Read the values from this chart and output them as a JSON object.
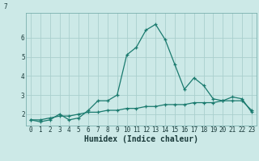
{
  "title": "",
  "xlabel": "Humidex (Indice chaleur)",
  "background_color": "#cce9e7",
  "grid_color": "#aacfcd",
  "line_color": "#1a7a6e",
  "spine_color": "#7ab0ae",
  "xlim": [
    -0.5,
    23.5
  ],
  "ylim": [
    1.4,
    7.3
  ],
  "yticks": [
    2,
    3,
    4,
    5,
    6
  ],
  "xticks": [
    0,
    1,
    2,
    3,
    4,
    5,
    6,
    7,
    8,
    9,
    10,
    11,
    12,
    13,
    14,
    15,
    16,
    17,
    18,
    19,
    20,
    21,
    22,
    23
  ],
  "x": [
    0,
    1,
    2,
    3,
    4,
    5,
    6,
    7,
    8,
    9,
    10,
    11,
    12,
    13,
    14,
    15,
    16,
    17,
    18,
    19,
    20,
    21,
    22,
    23
  ],
  "y_line1": [
    1.7,
    1.6,
    1.7,
    2.0,
    1.7,
    1.8,
    2.2,
    2.7,
    2.7,
    3.0,
    5.1,
    5.5,
    6.4,
    6.7,
    5.9,
    4.6,
    3.3,
    3.9,
    3.5,
    2.8,
    2.7,
    2.9,
    2.8,
    2.1
  ],
  "y_line2": [
    1.7,
    1.7,
    1.8,
    1.9,
    1.9,
    2.0,
    2.1,
    2.1,
    2.2,
    2.2,
    2.3,
    2.3,
    2.4,
    2.4,
    2.5,
    2.5,
    2.5,
    2.6,
    2.6,
    2.6,
    2.7,
    2.7,
    2.7,
    2.2
  ],
  "tick_color": "#1a3a3a",
  "tick_fontsize": 5.5,
  "xlabel_fontsize": 7,
  "marker_size": 3.5,
  "linewidth": 0.9
}
